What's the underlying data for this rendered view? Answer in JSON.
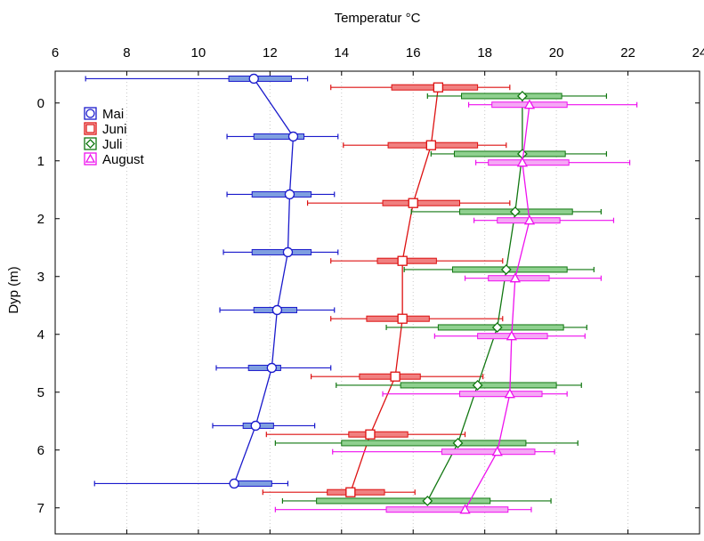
{
  "chart_data": {
    "type": "scatter",
    "title": "",
    "xlabel": "Temperatur °C",
    "ylabel": "Dyp (m)",
    "xlim": [
      6,
      24
    ],
    "ylim": [
      -0.55,
      7.45
    ],
    "x_ticks": [
      6,
      8,
      10,
      12,
      14,
      16,
      18,
      20,
      22,
      24
    ],
    "y_ticks": [
      0,
      1,
      2,
      3,
      4,
      5,
      6,
      7
    ],
    "x_axis_position": "top",
    "y_axis_inverted": true,
    "grid": "vertical dotted",
    "legend": "top-left",
    "series": [
      {
        "name": "Mai",
        "marker": "circle",
        "color": "#1a1acc",
        "fill": "#7f9fe0",
        "depth_offset": -0.42,
        "depth": [
          0,
          1,
          2,
          3,
          4,
          5,
          6,
          7
        ],
        "mean": [
          11.55,
          12.65,
          12.55,
          12.5,
          12.2,
          12.05,
          11.6,
          11.0
        ],
        "box": [
          [
            10.85,
            12.6
          ],
          [
            11.55,
            12.95
          ],
          [
            11.5,
            13.15
          ],
          [
            11.5,
            13.15
          ],
          [
            11.55,
            12.75
          ],
          [
            11.4,
            12.3
          ],
          [
            11.25,
            12.1
          ],
          [
            11.05,
            12.05
          ]
        ],
        "whisker": [
          [
            6.85,
            13.05
          ],
          [
            10.8,
            13.9
          ],
          [
            10.8,
            13.8
          ],
          [
            10.7,
            13.9
          ],
          [
            10.6,
            13.8
          ],
          [
            10.5,
            13.7
          ],
          [
            10.4,
            13.25
          ],
          [
            7.1,
            12.5
          ]
        ]
      },
      {
        "name": "Juni",
        "marker": "square",
        "color": "#dd1111",
        "fill": "#f08080",
        "depth_offset": -0.27,
        "depth": [
          0,
          1,
          2,
          3,
          4,
          5,
          6,
          7
        ],
        "mean": [
          16.7,
          16.5,
          16.0,
          15.7,
          15.7,
          15.5,
          14.8,
          14.25
        ],
        "box": [
          [
            15.4,
            17.8
          ],
          [
            15.3,
            17.8
          ],
          [
            15.15,
            17.3
          ],
          [
            15.0,
            16.65
          ],
          [
            14.7,
            16.45
          ],
          [
            14.5,
            16.2
          ],
          [
            14.2,
            15.85
          ],
          [
            13.6,
            15.2
          ]
        ],
        "whisker": [
          [
            13.7,
            18.7
          ],
          [
            14.05,
            18.6
          ],
          [
            13.05,
            18.7
          ],
          [
            13.7,
            18.5
          ],
          [
            13.7,
            18.5
          ],
          [
            13.15,
            17.95
          ],
          [
            11.9,
            17.45
          ],
          [
            11.8,
            16.05
          ]
        ]
      },
      {
        "name": "Juli",
        "marker": "diamond",
        "color": "#117711",
        "fill": "#8fd08f",
        "depth_offset": -0.12,
        "depth": [
          0,
          1,
          2,
          3,
          4,
          5,
          6,
          7
        ],
        "mean": [
          19.05,
          19.05,
          18.85,
          18.6,
          18.35,
          17.8,
          17.25,
          16.4
        ],
        "box": [
          [
            17.35,
            20.15
          ],
          [
            17.15,
            20.25
          ],
          [
            17.3,
            20.45
          ],
          [
            17.1,
            20.3
          ],
          [
            16.7,
            20.2
          ],
          [
            15.65,
            20.0
          ],
          [
            14.0,
            19.15
          ],
          [
            13.3,
            18.15
          ]
        ],
        "whisker": [
          [
            16.4,
            21.4
          ],
          [
            16.5,
            21.4
          ],
          [
            15.95,
            21.25
          ],
          [
            15.75,
            21.05
          ],
          [
            15.25,
            20.85
          ],
          [
            13.85,
            20.7
          ],
          [
            12.15,
            20.6
          ],
          [
            12.35,
            19.85
          ]
        ]
      },
      {
        "name": "August",
        "marker": "triangle",
        "color": "#ee11ee",
        "fill": "#f5a8f5",
        "depth_offset": 0.03,
        "depth": [
          0,
          1,
          2,
          3,
          4,
          5,
          6,
          7
        ],
        "mean": [
          19.25,
          19.05,
          19.25,
          18.85,
          18.75,
          18.7,
          18.35,
          17.45
        ],
        "box": [
          [
            18.2,
            20.3
          ],
          [
            18.1,
            20.35
          ],
          [
            18.35,
            20.1
          ],
          [
            18.1,
            19.8
          ],
          [
            17.8,
            19.75
          ],
          [
            17.3,
            19.6
          ],
          [
            16.8,
            19.4
          ],
          [
            15.25,
            18.65
          ]
        ],
        "whisker": [
          [
            17.55,
            22.25
          ],
          [
            17.75,
            22.05
          ],
          [
            17.7,
            21.6
          ],
          [
            17.45,
            21.25
          ],
          [
            16.6,
            20.8
          ],
          [
            15.15,
            20.3
          ],
          [
            13.75,
            19.95
          ],
          [
            12.15,
            19.3
          ]
        ]
      }
    ]
  }
}
